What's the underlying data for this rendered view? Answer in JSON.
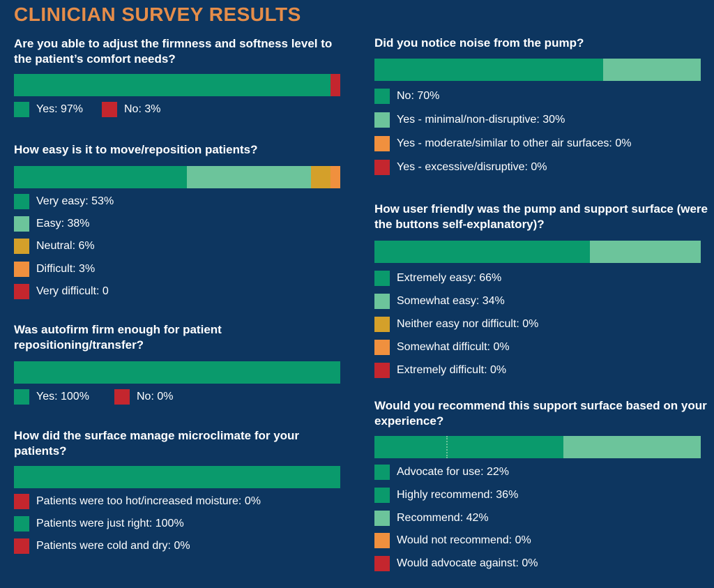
{
  "title": "CLINICIAN SURVEY RESULTS",
  "colors": {
    "dark_green": "#0a9a6c",
    "light_green": "#6cc49b",
    "mustard": "#d4a02a",
    "orange": "#f0903e",
    "red": "#c4262e",
    "background": "#0d3660",
    "title": "#e58d4a"
  },
  "chart_data": [
    {
      "type": "bar",
      "orientation": "stacked-horizontal",
      "question": "Are you able to adjust the firmness and softness level to the patient’s comfort needs?",
      "series": [
        {
          "name": "Yes",
          "value": 97,
          "label": "Yes: 97%",
          "color": "#0a9a6c"
        },
        {
          "name": "No",
          "value": 3,
          "label": "No: 3%",
          "color": "#c4262e"
        }
      ]
    },
    {
      "type": "bar",
      "orientation": "stacked-horizontal",
      "question": "How easy is it to move/reposition patients?",
      "series": [
        {
          "name": "Very easy",
          "value": 53,
          "label": "Very easy: 53%",
          "color": "#0a9a6c"
        },
        {
          "name": "Easy",
          "value": 38,
          "label": "Easy: 38%",
          "color": "#6cc49b"
        },
        {
          "name": "Neutral",
          "value": 6,
          "label": "Neutral: 6%",
          "color": "#d4a02a"
        },
        {
          "name": "Difficult",
          "value": 3,
          "label": "Difficult: 3%",
          "color": "#f0903e"
        },
        {
          "name": "Very difficult",
          "value": 0,
          "label": "Very difficult: 0",
          "color": "#c4262e"
        }
      ]
    },
    {
      "type": "bar",
      "orientation": "stacked-horizontal",
      "question": "Was autofirm firm enough for patient repositioning/transfer?",
      "series": [
        {
          "name": "Yes",
          "value": 100,
          "label": "Yes: 100%",
          "color": "#0a9a6c"
        },
        {
          "name": "No",
          "value": 0,
          "label": "No: 0%",
          "color": "#c4262e"
        }
      ]
    },
    {
      "type": "bar",
      "orientation": "stacked-horizontal",
      "question": "How did the surface manage microclimate for your patients?",
      "series": [
        {
          "name": "Patients were too hot/increased moisture",
          "value": 0,
          "label": "Patients were too hot/increased moisture: 0%",
          "color": "#c4262e"
        },
        {
          "name": "Patients were just right",
          "value": 100,
          "label": "Patients were just right: 100%",
          "color": "#0a9a6c"
        },
        {
          "name": "Patients were cold and dry",
          "value": 0,
          "label": "Patients were cold and dry: 0%",
          "color": "#c4262e"
        }
      ]
    },
    {
      "type": "bar",
      "orientation": "stacked-horizontal",
      "question": "Did you notice noise from the pump?",
      "series": [
        {
          "name": "No",
          "value": 70,
          "label": "No: 70%",
          "color": "#0a9a6c"
        },
        {
          "name": "Yes - minimal/non-disruptive",
          "value": 30,
          "label": "Yes - minimal/non-disruptive: 30%",
          "color": "#6cc49b"
        },
        {
          "name": "Yes - moderate/similar to other air surfaces",
          "value": 0,
          "label": "Yes - moderate/similar to other air surfaces: 0%",
          "color": "#f0903e"
        },
        {
          "name": "Yes - excessive/disruptive",
          "value": 0,
          "label": "Yes - excessive/disruptive: 0%",
          "color": "#c4262e"
        }
      ]
    },
    {
      "type": "bar",
      "orientation": "stacked-horizontal",
      "question": "How user friendly was the pump and support surface (were the buttons self-explanatory)?",
      "series": [
        {
          "name": "Extremely easy",
          "value": 66,
          "label": "Extremely easy: 66%",
          "color": "#0a9a6c"
        },
        {
          "name": "Somewhat easy",
          "value": 34,
          "label": "Somewhat easy: 34%",
          "color": "#6cc49b"
        },
        {
          "name": "Neither easy nor difficult",
          "value": 0,
          "label": "Neither easy nor difficult: 0%",
          "color": "#d4a02a"
        },
        {
          "name": "Somewhat difficult",
          "value": 0,
          "label": "Somewhat difficult: 0%",
          "color": "#f0903e"
        },
        {
          "name": "Extremely difficult",
          "value": 0,
          "label": "Extremely difficult: 0%",
          "color": "#c4262e"
        }
      ]
    },
    {
      "type": "bar",
      "orientation": "stacked-horizontal",
      "question": "Would you recommend this support surface based on your experience?",
      "series": [
        {
          "name": "Advocate for use",
          "value": 22,
          "label": "Advocate for use: 22%",
          "color": "#0a9a6c"
        },
        {
          "name": "Highly recommend",
          "value": 36,
          "label": "Highly recommend: 36%",
          "color": "#0a9a6c"
        },
        {
          "name": "Recommend",
          "value": 42,
          "label": "Recommend: 42%",
          "color": "#6cc49b"
        },
        {
          "name": "Would not recommend",
          "value": 0,
          "label": "Would not recommend: 0%",
          "color": "#f0903e"
        },
        {
          "name": "Would advocate against",
          "value": 0,
          "label": "Would advocate against: 0%",
          "color": "#c4262e"
        }
      ]
    }
  ]
}
